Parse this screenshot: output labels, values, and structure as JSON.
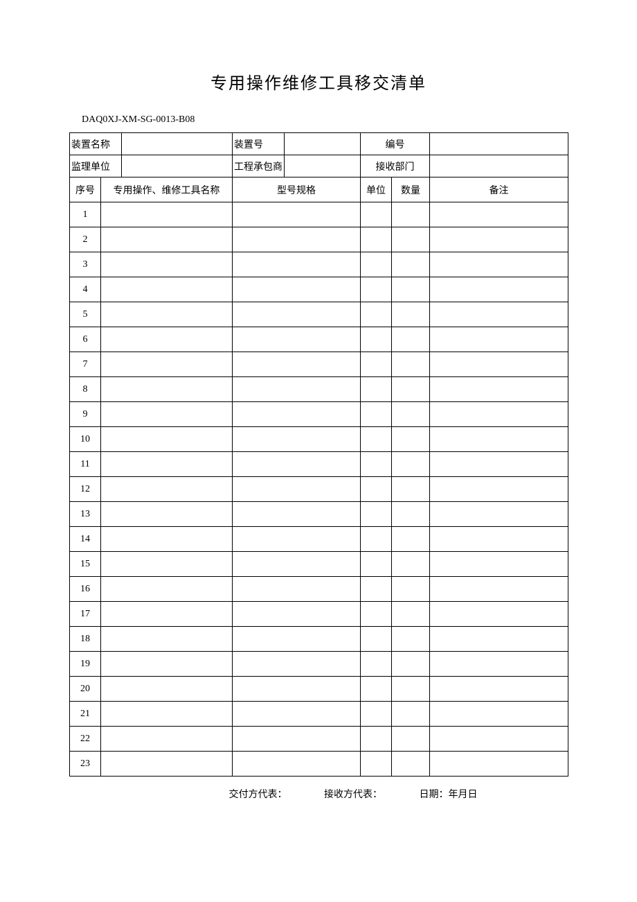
{
  "title": "专用操作维修工具移交清单",
  "doc_code": "DAQ0XJ-XM-SG-0013-B08",
  "header": {
    "row1": {
      "label1": "装置名称",
      "label2": "装置号",
      "label3": "编号"
    },
    "row2": {
      "label1": "监理单位",
      "label2": "工程承包商",
      "label3": "接收部门"
    }
  },
  "columns": {
    "c1": "序号",
    "c2": "专用操作、维修工具名称",
    "c3": "型号规格",
    "c4": "单位",
    "c5": "数量",
    "c6": "备注"
  },
  "rows": [
    "1",
    "2",
    "3",
    "4",
    "5",
    "6",
    "7",
    "8",
    "9",
    "10",
    "11",
    "12",
    "13",
    "14",
    "15",
    "16",
    "17",
    "18",
    "19",
    "20",
    "21",
    "22",
    "23"
  ],
  "footer": {
    "delivery": "交付方代表：",
    "receive": "接收方代表：",
    "date": "日期：年月日"
  },
  "layout": {
    "col_widths": {
      "seq": 45,
      "name": 190,
      "spec": 185,
      "unit": 45,
      "qty": 55,
      "remark": 200
    },
    "header_widths": {
      "label": 75,
      "value1": 160,
      "label2": 75,
      "value2": 110,
      "label3": 100,
      "value3": 200
    }
  }
}
